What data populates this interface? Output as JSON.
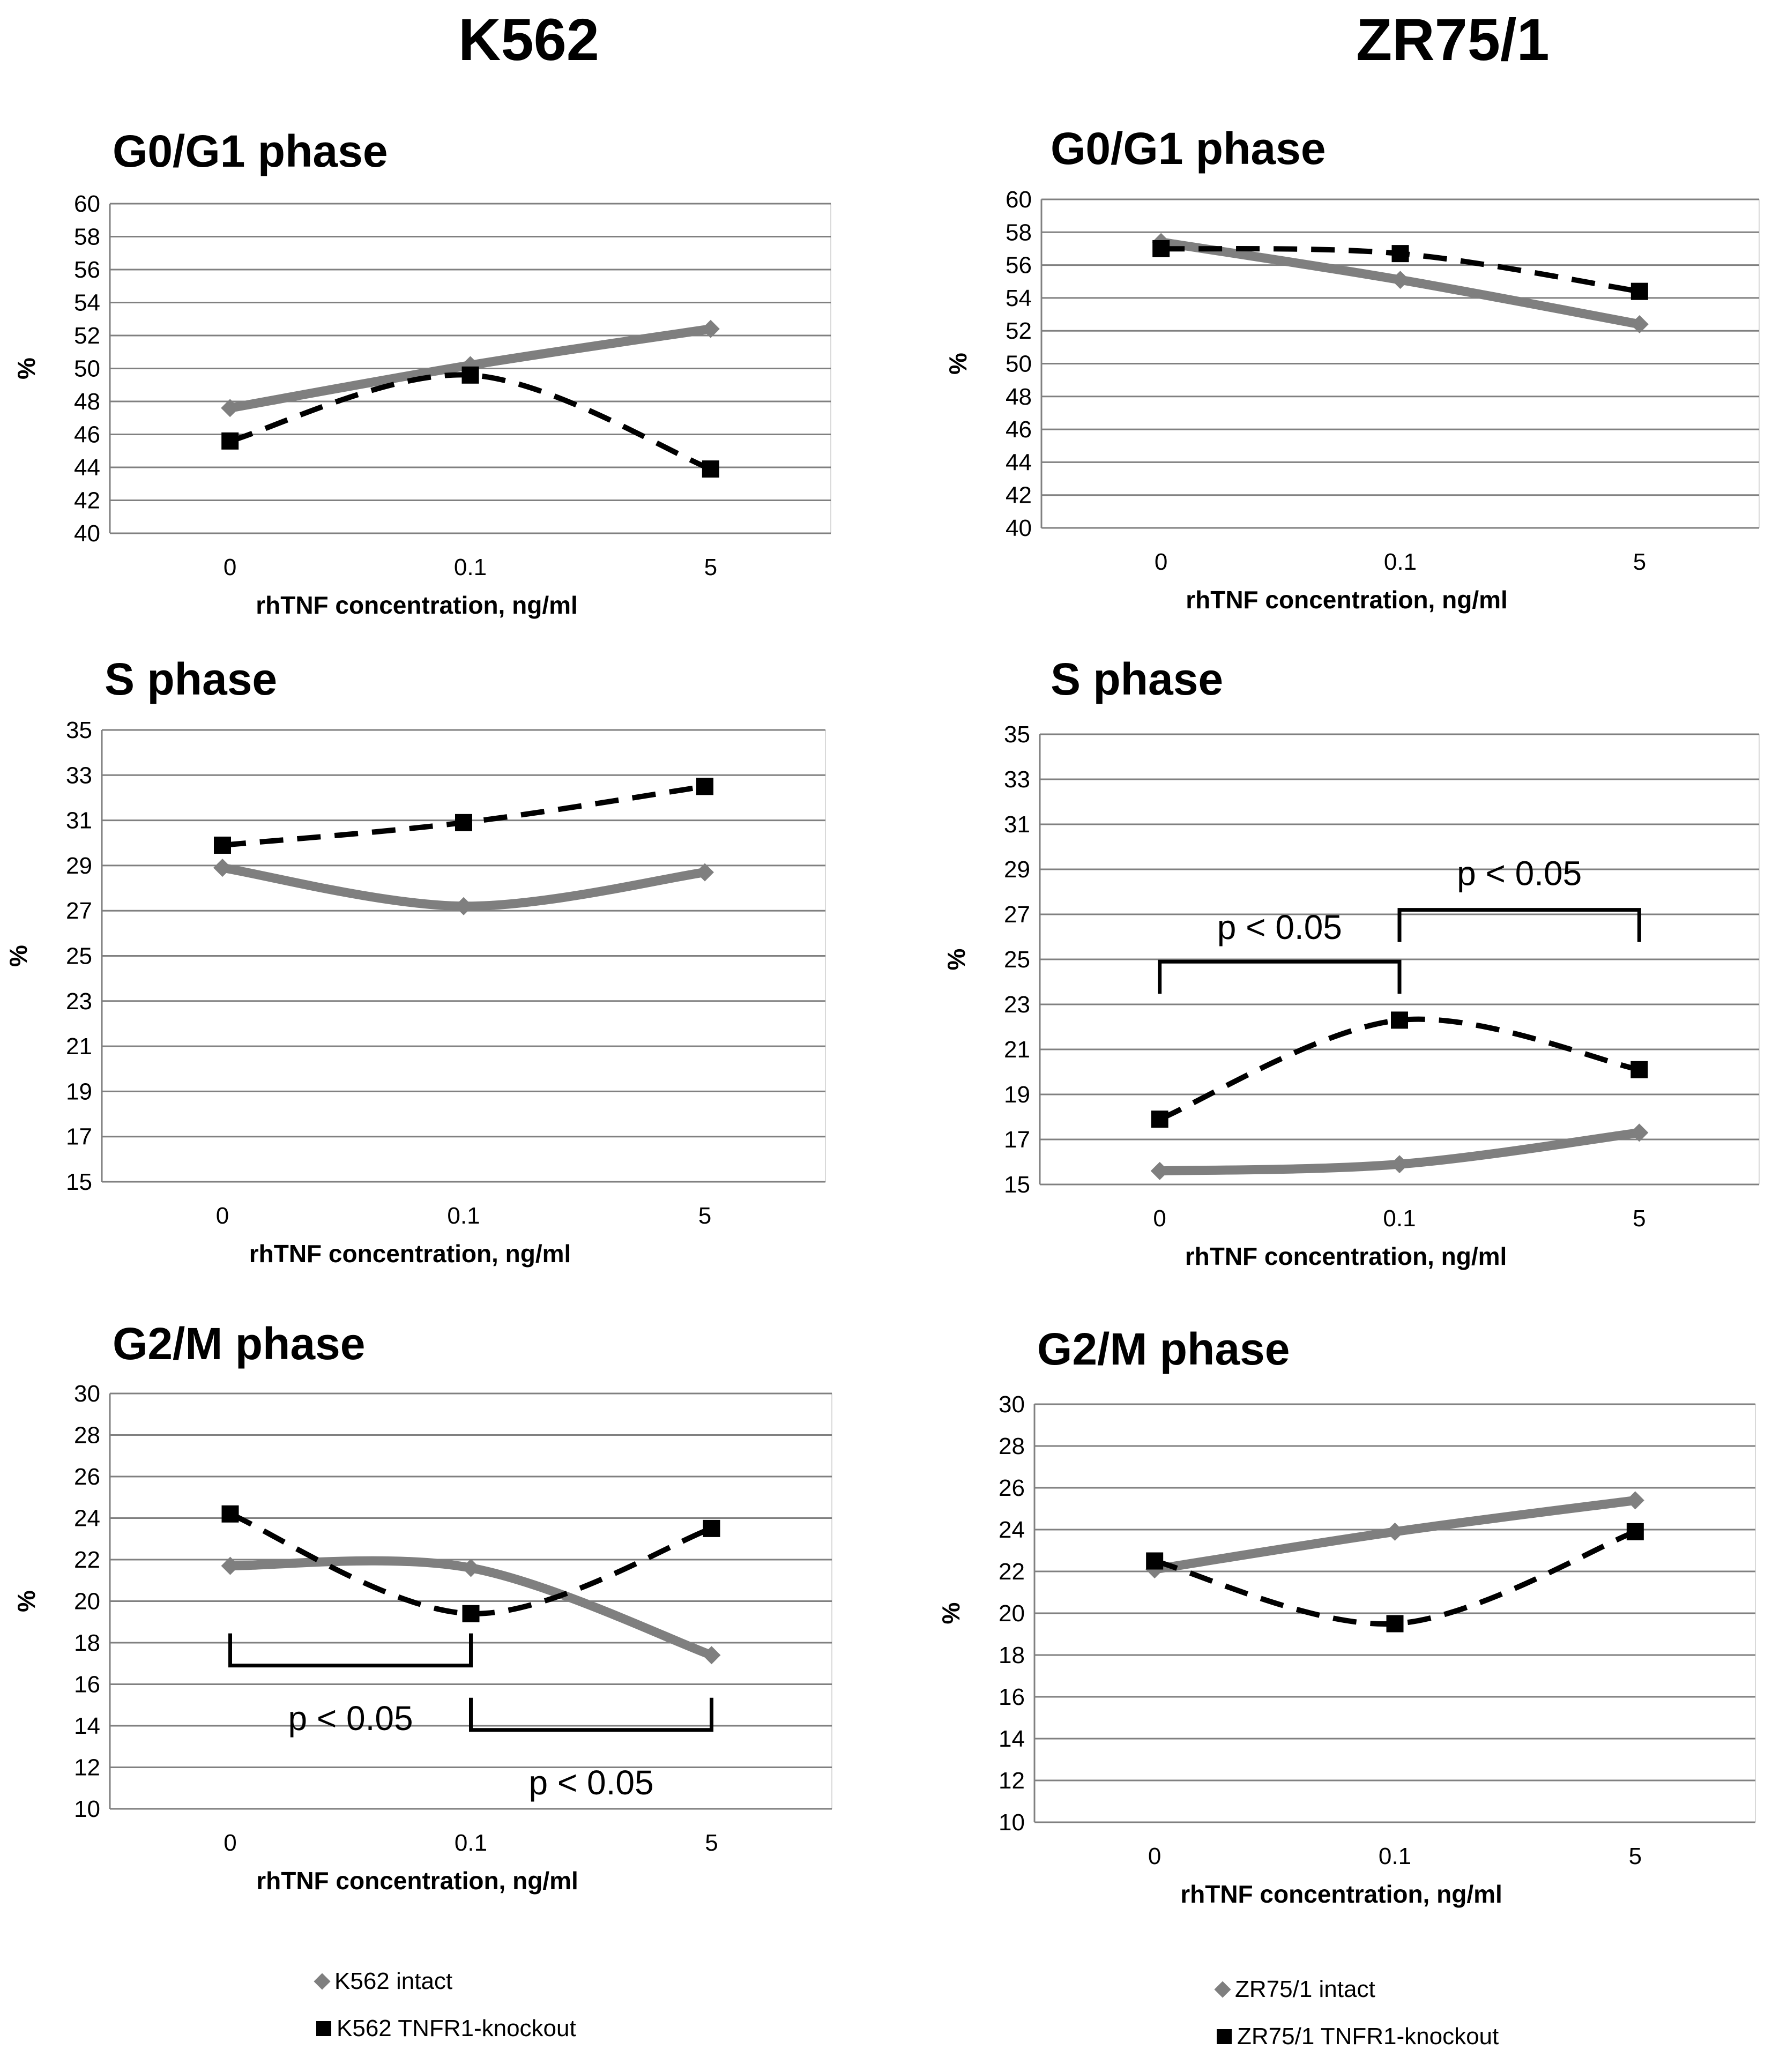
{
  "headers": {
    "left": "K562",
    "right": "ZR75/1"
  },
  "colors": {
    "intact": "#7f7f7f",
    "knockout": "#000000",
    "grid": "#808080"
  },
  "chart_data": [
    {
      "id": "k562-g0g1",
      "type": "line",
      "title": "G0/G1 phase",
      "categories": [
        "0",
        "0.1",
        "5"
      ],
      "xlabel": "rhTNF concentration, ng/ml",
      "ylabel": "%",
      "ylim": [
        40,
        60
      ],
      "ystep": 2,
      "grid": true,
      "series": [
        {
          "name": "K562 intact",
          "style": "intact",
          "values": [
            47.6,
            50.2,
            52.4
          ]
        },
        {
          "name": "K562 TNFR1-knockout",
          "style": "knockout",
          "values": [
            45.6,
            49.6,
            43.9
          ]
        }
      ],
      "annotations": []
    },
    {
      "id": "zr-g0g1",
      "type": "line",
      "title": "G0/G1 phase",
      "categories": [
        "0",
        "0.1",
        "5"
      ],
      "xlabel": "rhTNF concentration, ng/ml",
      "ylabel": "%",
      "ylim": [
        40,
        60
      ],
      "ystep": 2,
      "grid": true,
      "series": [
        {
          "name": "ZR75/1 intact",
          "style": "intact",
          "values": [
            57.4,
            55.1,
            52.4
          ]
        },
        {
          "name": "ZR75/1 TNFR1-knockout",
          "style": "knockout",
          "values": [
            57.0,
            56.7,
            54.4
          ]
        }
      ],
      "annotations": []
    },
    {
      "id": "k562-s",
      "type": "line",
      "title": "S phase",
      "categories": [
        "0",
        "0.1",
        "5"
      ],
      "xlabel": "rhTNF concentration, ng/ml",
      "ylabel": "%",
      "ylim": [
        15,
        35
      ],
      "ystep": 2,
      "grid": true,
      "series": [
        {
          "name": "K562 intact",
          "style": "intact",
          "values": [
            28.9,
            27.2,
            28.7
          ]
        },
        {
          "name": "K562 TNFR1-knockout",
          "style": "knockout",
          "values": [
            29.9,
            30.9,
            32.5
          ]
        }
      ],
      "annotations": []
    },
    {
      "id": "zr-s",
      "type": "line",
      "title": "S phase",
      "categories": [
        "0",
        "0.1",
        "5"
      ],
      "xlabel": "rhTNF concentration, ng/ml",
      "ylabel": "%",
      "ylim": [
        15,
        35
      ],
      "ystep": 2,
      "grid": true,
      "series": [
        {
          "name": "ZR75/1 intact",
          "style": "intact",
          "values": [
            15.6,
            15.9,
            17.3
          ]
        },
        {
          "name": "ZR75/1 TNFR1-knockout",
          "style": "knockout",
          "values": [
            17.9,
            22.3,
            20.1
          ]
        }
      ],
      "annotations": [
        {
          "text": "p < 0.05",
          "from": 0,
          "to": 1,
          "y": 24.9,
          "dir": "down",
          "labelY": 25.9
        },
        {
          "text": "p < 0.05",
          "from": 1,
          "to": 2,
          "y": 27.2,
          "dir": "down",
          "labelY": 28.3
        }
      ]
    },
    {
      "id": "k562-g2m",
      "type": "line",
      "title": "G2/M phase",
      "categories": [
        "0",
        "0.1",
        "5"
      ],
      "xlabel": "rhTNF concentration, ng/ml",
      "ylabel": "%",
      "ylim": [
        10,
        30
      ],
      "ystep": 2,
      "grid": true,
      "series": [
        {
          "name": "K562 intact",
          "style": "intact",
          "values": [
            21.7,
            21.6,
            17.4
          ]
        },
        {
          "name": "K562 TNFR1-knockout",
          "style": "knockout",
          "values": [
            24.2,
            19.4,
            23.5
          ]
        }
      ],
      "annotations": [
        {
          "text": "p < 0.05",
          "from": 0,
          "to": 1,
          "y": 16.9,
          "dir": "up",
          "labelY": 13.8
        },
        {
          "text": "p < 0.05",
          "from": 1,
          "to": 2,
          "y": 13.8,
          "dir": "up",
          "labelY": 10.7
        }
      ]
    },
    {
      "id": "zr-g2m",
      "type": "line",
      "title": "G2/M phase",
      "categories": [
        "0",
        "0.1",
        "5"
      ],
      "xlabel": "rhTNF concentration, ng/ml",
      "ylabel": "%",
      "ylim": [
        10,
        30
      ],
      "ystep": 2,
      "grid": true,
      "series": [
        {
          "name": "ZR75/1 intact",
          "style": "intact",
          "values": [
            22.1,
            23.9,
            25.4
          ]
        },
        {
          "name": "ZR75/1 TNFR1-knockout",
          "style": "knockout",
          "values": [
            22.5,
            19.5,
            23.9
          ]
        }
      ],
      "annotations": []
    }
  ],
  "legends": {
    "left": [
      {
        "label": "K562 intact",
        "style": "intact"
      },
      {
        "label": "K562 TNFR1-knockout",
        "style": "knockout"
      }
    ],
    "right": [
      {
        "label": "ZR75/1 intact",
        "style": "intact"
      },
      {
        "label": "ZR75/1 TNFR1-knockout",
        "style": "knockout"
      }
    ]
  }
}
